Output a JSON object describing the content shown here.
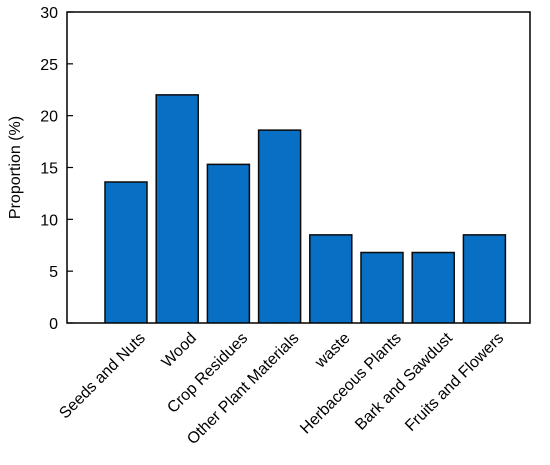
{
  "chart_data": {
    "type": "bar",
    "title": "",
    "xlabel": "",
    "ylabel": "Proportion (%)",
    "ylim": [
      0,
      30
    ],
    "yticks": [
      0,
      5,
      10,
      15,
      20,
      25,
      30
    ],
    "grid": false,
    "legend": "none",
    "categories": [
      "Seeds and Nuts",
      "Wood",
      "Crop Residues",
      "Other Plant Materials",
      "waste",
      "Herbaceous Plants",
      "Bark and Sawdust",
      "Fruits and Flowers"
    ],
    "values": [
      13.6,
      22.0,
      15.3,
      18.6,
      8.5,
      6.8,
      6.8,
      8.5
    ],
    "colors": {
      "bar": "#0870c4",
      "bar_edge": "#0a0a0a"
    }
  }
}
